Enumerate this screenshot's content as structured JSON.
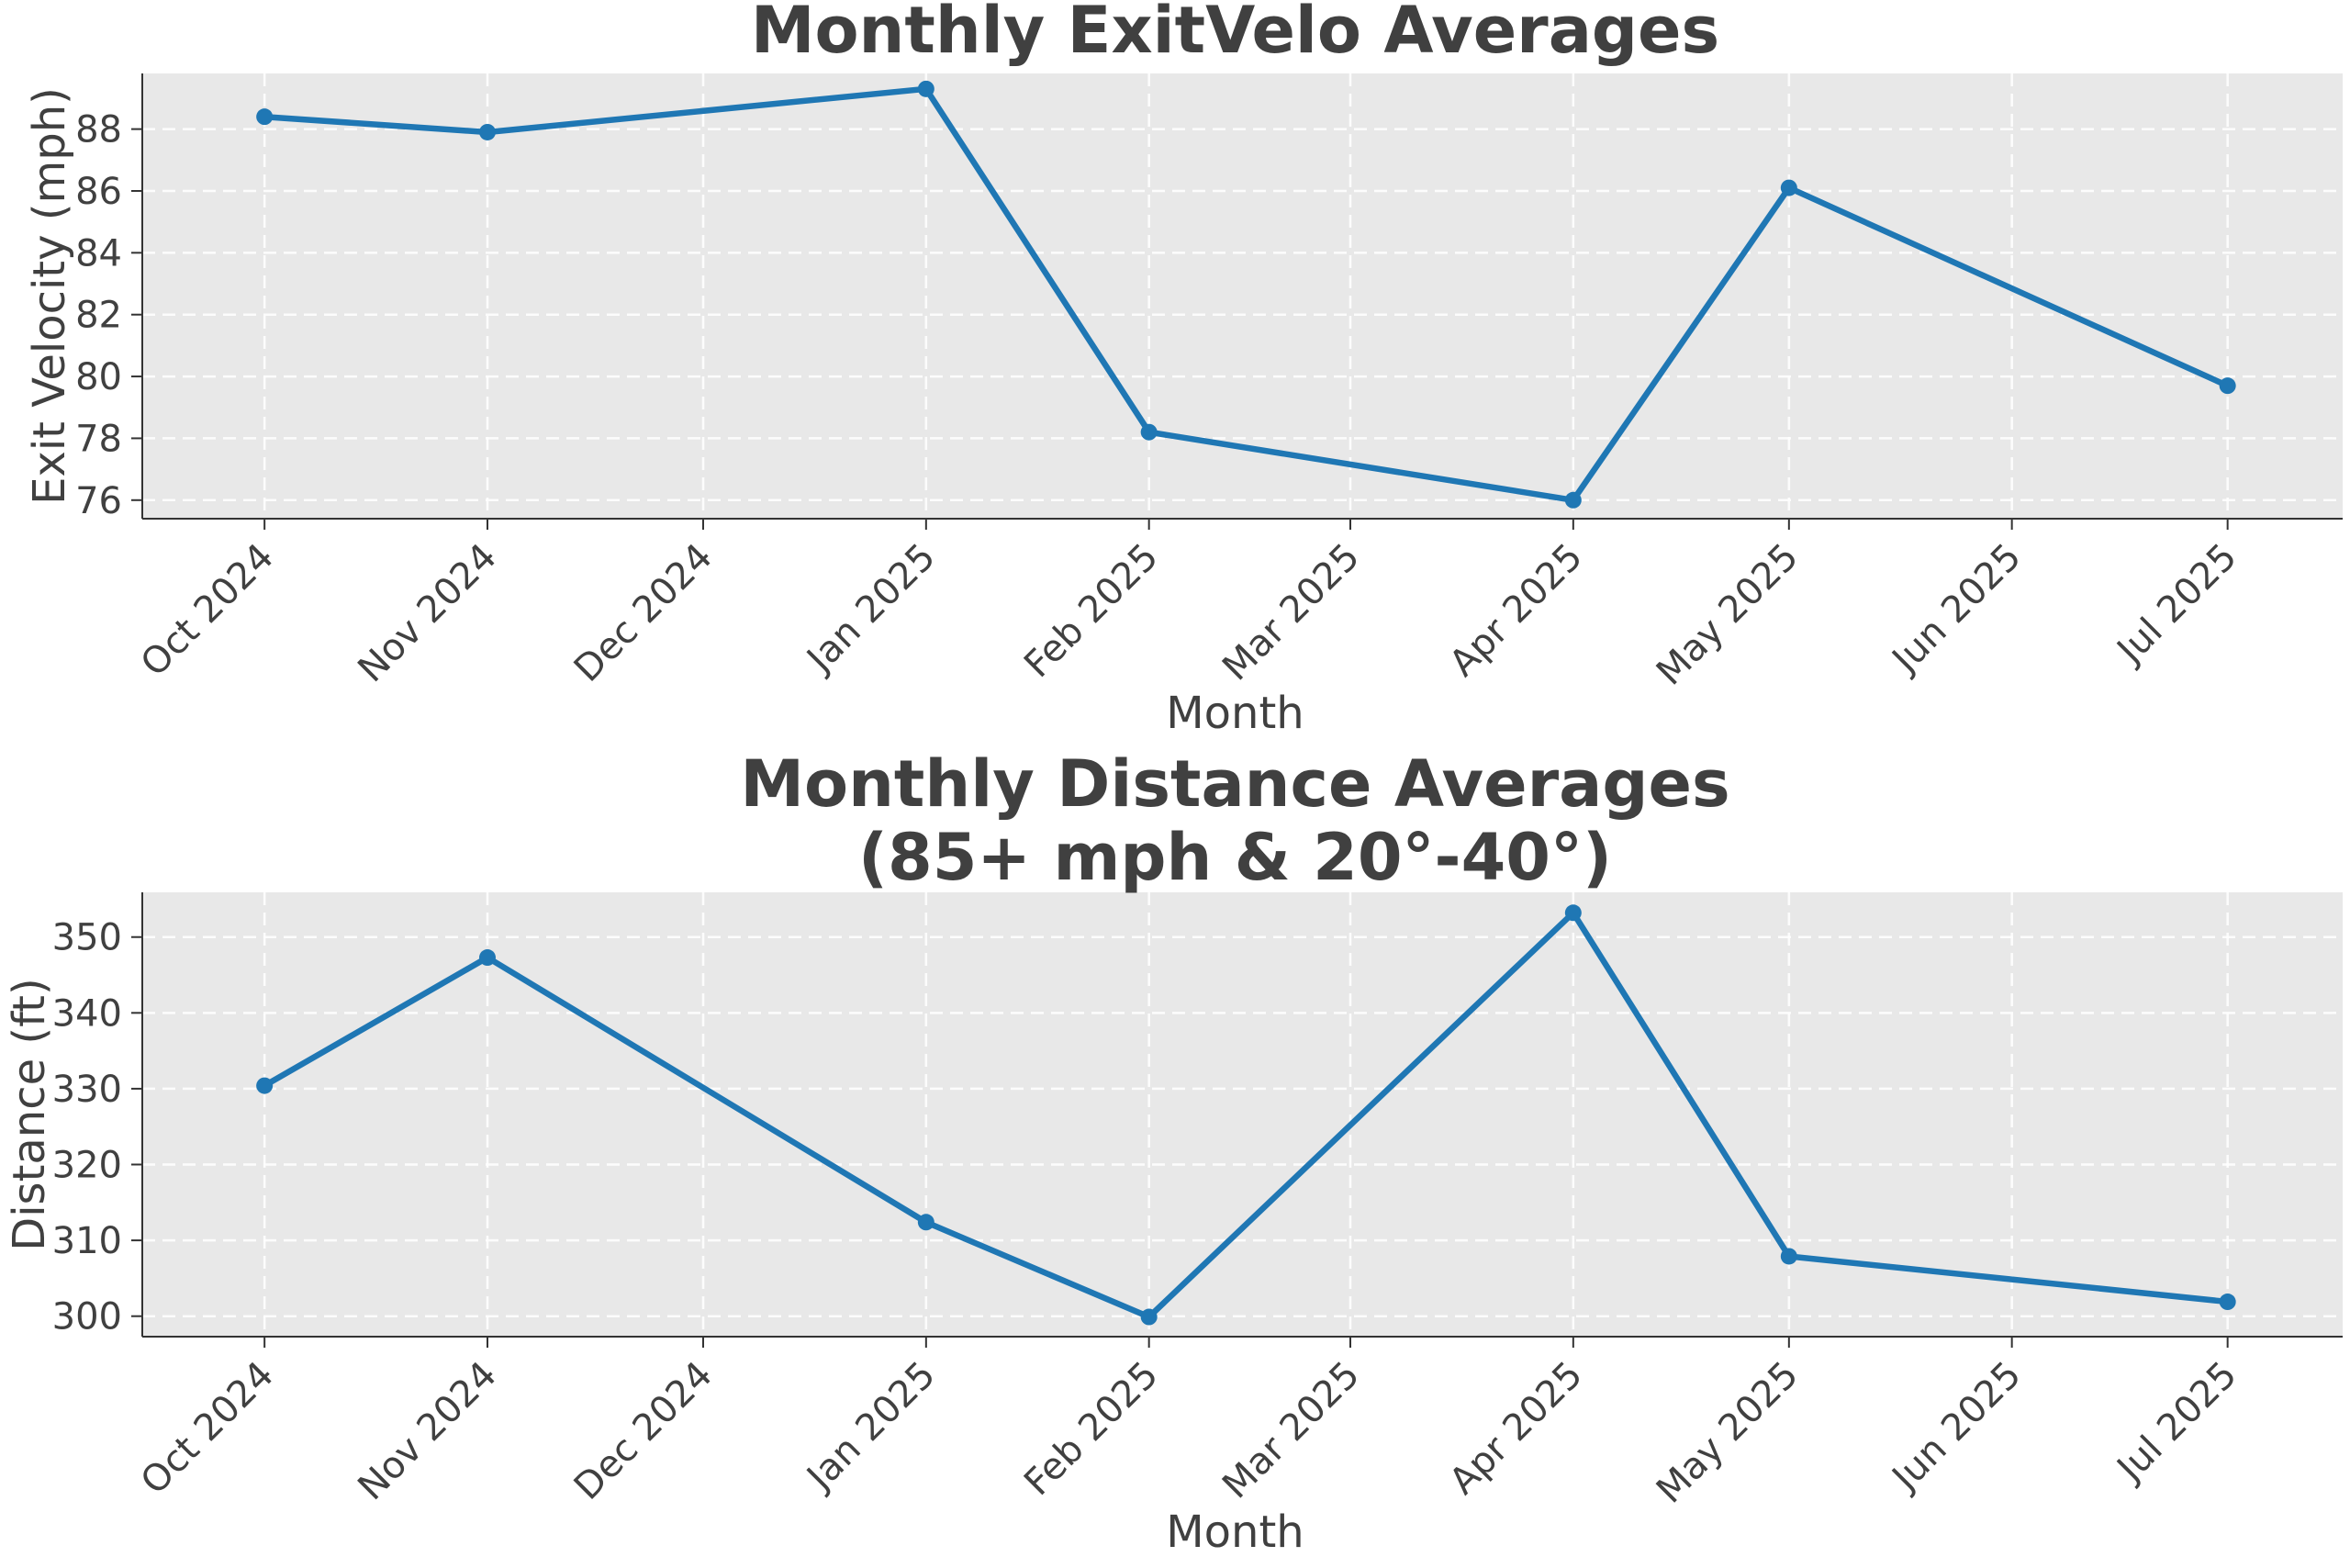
{
  "chart_data": [
    {
      "type": "line",
      "title": "Monthly ExitVelo Averages",
      "xlabel": "Month",
      "ylabel": "Exit Velocity (mph)",
      "x_range": [
        "2024-09-14",
        "2025-07-17"
      ],
      "ylim": [
        75.4,
        89.8
      ],
      "y_ticks": [
        76,
        78,
        80,
        82,
        84,
        86,
        88
      ],
      "x_ticks": [
        {
          "date": "2024-10-01",
          "label": "Oct 2024"
        },
        {
          "date": "2024-11-01",
          "label": "Nov 2024"
        },
        {
          "date": "2024-12-01",
          "label": "Dec 2024"
        },
        {
          "date": "2025-01-01",
          "label": "Jan 2025"
        },
        {
          "date": "2025-02-01",
          "label": "Feb 2025"
        },
        {
          "date": "2025-03-01",
          "label": "Mar 2025"
        },
        {
          "date": "2025-04-01",
          "label": "Apr 2025"
        },
        {
          "date": "2025-05-01",
          "label": "May 2025"
        },
        {
          "date": "2025-06-01",
          "label": "Jun 2025"
        },
        {
          "date": "2025-07-01",
          "label": "Jul 2025"
        }
      ],
      "grid": true,
      "series": [
        {
          "color": "#1f77b4",
          "points": [
            {
              "x": "2024-10-01",
              "y": 88.4
            },
            {
              "x": "2024-11-01",
              "y": 87.9
            },
            {
              "x": "2025-01-01",
              "y": 89.3
            },
            {
              "x": "2025-02-01",
              "y": 78.2
            },
            {
              "x": "2025-04-01",
              "y": 76.0
            },
            {
              "x": "2025-05-01",
              "y": 86.1
            },
            {
              "x": "2025-07-01",
              "y": 79.7
            }
          ]
        }
      ]
    },
    {
      "type": "line",
      "title": "Monthly Distance Averages\n(85+ mph & 20°-40°)",
      "xlabel": "Month",
      "ylabel": "Distance (ft)",
      "x_range": [
        "2024-09-14",
        "2025-07-17"
      ],
      "ylim": [
        297.3,
        355.9
      ],
      "y_ticks": [
        300,
        310,
        320,
        330,
        340,
        350
      ],
      "x_ticks": [
        {
          "date": "2024-10-01",
          "label": "Oct 2024"
        },
        {
          "date": "2024-11-01",
          "label": "Nov 2024"
        },
        {
          "date": "2024-12-01",
          "label": "Dec 2024"
        },
        {
          "date": "2025-01-01",
          "label": "Jan 2025"
        },
        {
          "date": "2025-02-01",
          "label": "Feb 2025"
        },
        {
          "date": "2025-03-01",
          "label": "Mar 2025"
        },
        {
          "date": "2025-04-01",
          "label": "Apr 2025"
        },
        {
          "date": "2025-05-01",
          "label": "May 2025"
        },
        {
          "date": "2025-06-01",
          "label": "Jun 2025"
        },
        {
          "date": "2025-07-01",
          "label": "Jul 2025"
        }
      ],
      "grid": true,
      "series": [
        {
          "color": "#1f77b4",
          "points": [
            {
              "x": "2024-10-01",
              "y": 330.4
            },
            {
              "x": "2024-11-01",
              "y": 347.3
            },
            {
              "x": "2025-01-01",
              "y": 312.4
            },
            {
              "x": "2025-02-01",
              "y": 299.9
            },
            {
              "x": "2025-04-01",
              "y": 353.2
            },
            {
              "x": "2025-05-01",
              "y": 307.9
            },
            {
              "x": "2025-07-01",
              "y": 301.9
            }
          ]
        }
      ]
    }
  ]
}
